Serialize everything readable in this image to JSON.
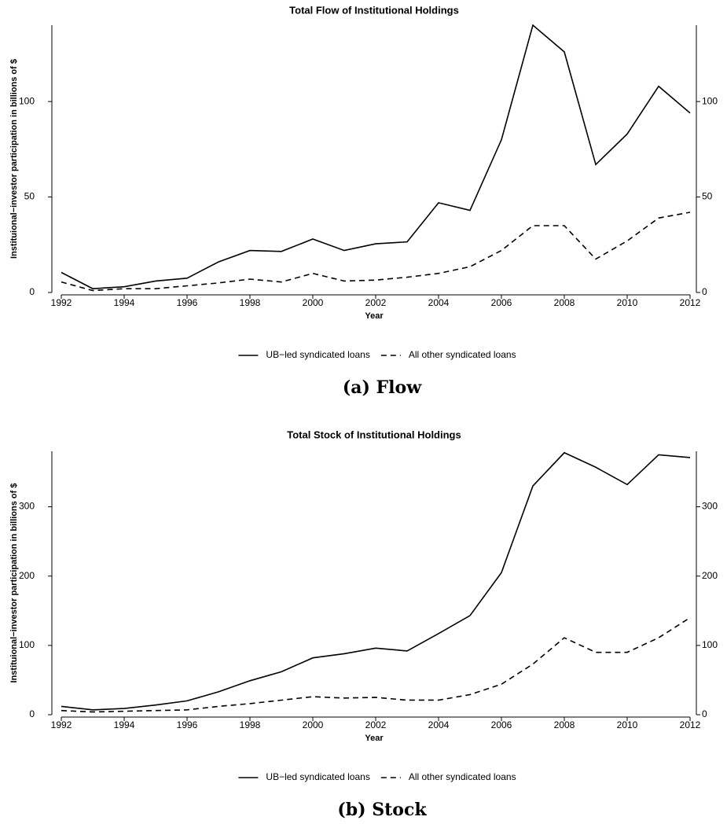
{
  "chart_data": [
    {
      "type": "line",
      "title": "Total Flow of Institutional Holdings",
      "xlabel": "Year",
      "ylabel": "Instituional−investor participation in billions of $",
      "caption": "(a) Flow",
      "x": [
        1992,
        1993,
        1994,
        1995,
        1996,
        1997,
        1998,
        1999,
        2000,
        2001,
        2002,
        2003,
        2004,
        2005,
        2006,
        2007,
        2008,
        2009,
        2010,
        2011,
        2012
      ],
      "series": [
        {
          "name": "UB−led syndicated loans",
          "color": "#000000",
          "style": "solid",
          "values": [
            10.5,
            2,
            3,
            6,
            7.5,
            16,
            22,
            21.5,
            28,
            22,
            25.5,
            26.5,
            47,
            43,
            80,
            140,
            126,
            67,
            83,
            108,
            94
          ]
        },
        {
          "name": "All other syndicated loans",
          "color": "#000000",
          "style": "dashed",
          "values": [
            5.5,
            1,
            2,
            2,
            3.5,
            5,
            7,
            5.5,
            10,
            6,
            6.5,
            8,
            10,
            13.5,
            22,
            35,
            35,
            17.5,
            27,
            39,
            42
          ]
        }
      ],
      "xlim": [
        1991.7,
        2012.2
      ],
      "xticks": [
        1992,
        1994,
        1996,
        1998,
        2000,
        2002,
        2004,
        2006,
        2008,
        2010,
        2012
      ],
      "ylim": [
        0,
        140
      ],
      "yticks": [
        0,
        50,
        100
      ],
      "y2lim": [
        0,
        140
      ],
      "y2ticks": [
        0,
        50,
        100
      ]
    },
    {
      "type": "line",
      "title": "Total Stock of Institutional Holdings",
      "xlabel": "Year",
      "ylabel": "Instituional−investor participation in billions of $",
      "caption": "(b) Stock",
      "x": [
        1992,
        1993,
        1994,
        1995,
        1996,
        1997,
        1998,
        1999,
        2000,
        2001,
        2002,
        2003,
        2004,
        2005,
        2006,
        2007,
        2008,
        2009,
        2010,
        2011,
        2012
      ],
      "series": [
        {
          "name": "UB−led syndicated loans",
          "color": "#000000",
          "style": "solid",
          "values": [
            12,
            7,
            9,
            14,
            20,
            33,
            49,
            62,
            82,
            88,
            96,
            92,
            117,
            143,
            205,
            330,
            378,
            357,
            332,
            375,
            371
          ]
        },
        {
          "name": "All other syndicated loans",
          "color": "#000000",
          "style": "dashed",
          "values": [
            6,
            4,
            5,
            6,
            7,
            12,
            16,
            21,
            26,
            24,
            25,
            21,
            21,
            29,
            44,
            73,
            111,
            90,
            90,
            111,
            140
          ]
        }
      ],
      "xlim": [
        1991.7,
        2012.2
      ],
      "xticks": [
        1992,
        1994,
        1996,
        1998,
        2000,
        2002,
        2004,
        2006,
        2008,
        2010,
        2012
      ],
      "ylim": [
        0,
        380
      ],
      "yticks": [
        0,
        100,
        200,
        300
      ],
      "y2lim": [
        0,
        380
      ],
      "y2ticks": [
        0,
        100,
        200,
        300
      ]
    }
  ]
}
